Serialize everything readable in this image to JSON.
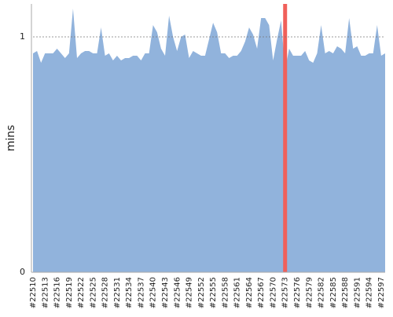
{
  "chart_data": {
    "type": "area",
    "y_label": "mins",
    "color": "#91b3dc",
    "categories": [
      "#22510",
      null,
      null,
      "#22513",
      null,
      null,
      "#22516",
      null,
      null,
      "#22519",
      null,
      null,
      "#22522",
      null,
      null,
      "#22525",
      null,
      null,
      "#22528",
      null,
      null,
      "#22531",
      null,
      null,
      "#22534",
      null,
      null,
      "#22537",
      null,
      null,
      "#22540",
      null,
      null,
      "#22543",
      null,
      null,
      "#22546",
      null,
      null,
      "#22549",
      null,
      null,
      "#22552",
      null,
      null,
      "#22555",
      null,
      null,
      "#22558",
      null,
      null,
      "#22561",
      null,
      null,
      "#22564",
      null,
      null,
      "#22567",
      null,
      null,
      "#22570",
      null,
      null,
      "#22573",
      null,
      null,
      "#22576",
      null,
      null,
      "#22579",
      null,
      null,
      "#22582",
      null,
      null,
      "#22585",
      null,
      null,
      "#22588",
      null,
      null,
      "#22591",
      null,
      null,
      "#22594",
      null,
      null,
      "#22597",
      null
    ],
    "values": [
      0.93,
      0.94,
      0.89,
      0.93,
      0.93,
      0.93,
      0.95,
      0.93,
      0.91,
      0.93,
      1.12,
      0.91,
      0.93,
      0.94,
      0.94,
      0.93,
      0.93,
      1.04,
      0.92,
      0.93,
      0.9,
      0.92,
      0.9,
      0.91,
      0.91,
      0.92,
      0.92,
      0.9,
      0.93,
      0.93,
      1.05,
      1.02,
      0.95,
      0.92,
      1.09,
      1.0,
      0.94,
      1.0,
      1.01,
      0.91,
      0.94,
      0.93,
      0.92,
      0.92,
      0.99,
      1.06,
      1.02,
      0.93,
      0.93,
      0.91,
      0.92,
      0.92,
      0.94,
      0.98,
      1.04,
      1.01,
      0.95,
      1.08,
      1.08,
      1.05,
      0.9,
      0.99,
      1.07,
      0.86,
      0.95,
      0.92,
      0.92,
      0.92,
      0.94,
      0.9,
      0.89,
      0.93,
      1.05,
      0.93,
      0.94,
      0.93,
      0.96,
      0.95,
      0.93,
      1.08,
      0.95,
      0.96,
      0.92,
      0.92,
      0.93,
      0.93,
      1.05,
      0.92,
      0.93
    ],
    "highlight": {
      "index": 63,
      "color": "#f0605a"
    },
    "ylim": [
      0,
      1.14
    ],
    "yticks": [
      0,
      1
    ],
    "grid": true
  }
}
